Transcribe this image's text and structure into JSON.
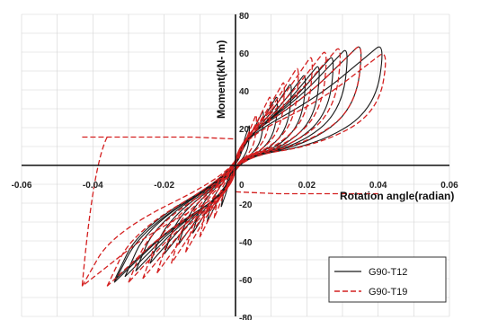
{
  "chart_data": {
    "type": "line",
    "title": "",
    "xlabel": "Rotation angle(radian)",
    "ylabel": "Moment(kN- m)",
    "xlim": [
      -0.06,
      0.06
    ],
    "ylim": [
      -80,
      80
    ],
    "x_ticks": [
      "-0.06",
      "-0.04",
      "-0.02",
      "0",
      "0.02",
      "0.04",
      "0.06"
    ],
    "y_ticks": [
      "-80",
      "-60",
      "-40",
      "-20",
      "0",
      "20",
      "40",
      "60",
      "80"
    ],
    "grid": true,
    "legend_position": "bottom-right",
    "series": [
      {
        "name": "G90-T12",
        "color": "#1a1a1a",
        "dash": "solid",
        "cycles": [
          {
            "pos": [
              0.004,
              22
            ],
            "neg": [
              -0.004,
              -22
            ]
          },
          {
            "pos": [
              0.008,
              30
            ],
            "neg": [
              -0.008,
              -30
            ]
          },
          {
            "pos": [
              0.012,
              38
            ],
            "neg": [
              -0.012,
              -36
            ]
          },
          {
            "pos": [
              0.016,
              45
            ],
            "neg": [
              -0.016,
              -42
            ]
          },
          {
            "pos": [
              0.02,
              50
            ],
            "neg": [
              -0.02,
              -47
            ]
          },
          {
            "pos": [
              0.024,
              55
            ],
            "neg": [
              -0.024,
              -52
            ]
          },
          {
            "pos": [
              0.028,
              60
            ],
            "neg": [
              -0.028,
              -56
            ]
          },
          {
            "pos": [
              0.032,
              64
            ],
            "neg": [
              -0.031,
              -59
            ]
          },
          {
            "pos": [
              0.036,
              66
            ],
            "neg": [
              -0.034,
              -61
            ]
          },
          {
            "pos": [
              0.042,
              66
            ],
            "neg": [
              -0.034,
              -62
            ]
          }
        ]
      },
      {
        "name": "G90-T19",
        "color": "#d42020",
        "dash": "dashed",
        "cycles": [
          {
            "pos": [
              0.006,
              28
            ],
            "neg": [
              -0.006,
              -28
            ]
          },
          {
            "pos": [
              0.01,
              38
            ],
            "neg": [
              -0.01,
              -38
            ]
          },
          {
            "pos": [
              0.014,
              46
            ],
            "neg": [
              -0.014,
              -46
            ]
          },
          {
            "pos": [
              0.018,
              54
            ],
            "neg": [
              -0.018,
              -52
            ]
          },
          {
            "pos": [
              0.022,
              60
            ],
            "neg": [
              -0.022,
              -57
            ]
          },
          {
            "pos": [
              0.026,
              63
            ],
            "neg": [
              -0.026,
              -60
            ]
          },
          {
            "pos": [
              0.03,
              65
            ],
            "neg": [
              -0.03,
              -62
            ]
          },
          {
            "pos": [
              0.036,
              66
            ],
            "neg": [
              -0.036,
              -64
            ]
          },
          {
            "pos": [
              0.043,
              62
            ],
            "neg": [
              -0.043,
              -64
            ]
          }
        ]
      }
    ]
  }
}
